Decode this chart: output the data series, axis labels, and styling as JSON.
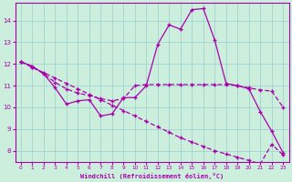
{
  "xlabel": "Windchill (Refroidissement éolien,°C)",
  "bg_color": "#cceedd",
  "line_color": "#aa00aa",
  "grid_color": "#99cccc",
  "xlim": [
    -0.5,
    23.5
  ],
  "ylim": [
    7.5,
    14.8
  ],
  "xticks": [
    0,
    1,
    2,
    3,
    4,
    5,
    6,
    7,
    8,
    9,
    10,
    11,
    12,
    13,
    14,
    15,
    16,
    17,
    18,
    19,
    20,
    21,
    22,
    23
  ],
  "yticks": [
    8,
    9,
    10,
    11,
    12,
    13,
    14
  ],
  "series1_x": [
    0,
    1,
    2,
    3,
    4,
    5,
    6,
    7,
    8,
    9,
    10,
    11,
    12,
    13,
    14,
    15,
    16,
    17,
    18,
    19,
    20,
    21,
    22,
    23
  ],
  "series1_y": [
    12.1,
    11.9,
    11.55,
    10.9,
    10.15,
    10.3,
    10.35,
    9.6,
    9.7,
    10.45,
    10.45,
    11.0,
    12.9,
    13.8,
    13.6,
    14.5,
    14.55,
    13.1,
    11.1,
    11.0,
    10.85,
    9.8,
    8.9,
    7.9
  ],
  "series2_x": [
    0,
    1,
    2,
    3,
    4,
    5,
    6,
    7,
    8,
    9,
    10,
    11,
    12,
    13,
    14,
    15,
    16,
    17,
    18,
    19,
    20,
    21,
    22,
    23
  ],
  "series2_y": [
    12.1,
    11.85,
    11.55,
    11.15,
    10.85,
    10.65,
    10.55,
    10.4,
    10.3,
    10.4,
    11.0,
    11.05,
    11.05,
    11.05,
    11.05,
    11.05,
    11.05,
    11.05,
    11.05,
    11.0,
    10.9,
    10.8,
    10.75,
    10.0
  ],
  "series3_x": [
    0,
    1,
    2,
    3,
    4,
    5,
    6,
    7,
    8,
    9,
    10,
    11,
    12,
    13,
    14,
    15,
    16,
    17,
    18,
    19,
    20,
    21,
    22,
    23
  ],
  "series3_y": [
    12.1,
    11.85,
    11.6,
    11.35,
    11.1,
    10.85,
    10.6,
    10.35,
    10.1,
    9.85,
    9.6,
    9.35,
    9.1,
    8.85,
    8.6,
    8.4,
    8.2,
    8.0,
    7.85,
    7.7,
    7.55,
    7.4,
    8.3,
    7.8
  ]
}
